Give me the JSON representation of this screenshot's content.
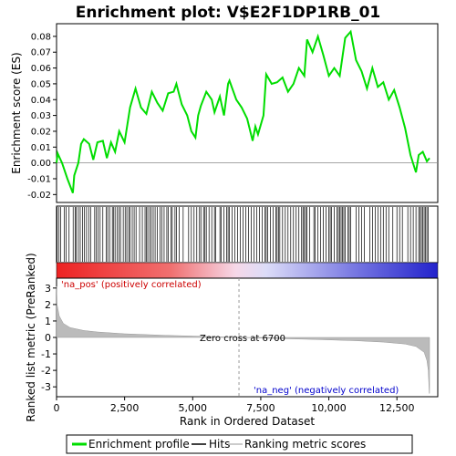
{
  "chart_data": {
    "type": "line",
    "title": "Enrichment plot: V$E2F1DP1RB_01",
    "ylabel_top": "Enrichment score (ES)",
    "ylabel_bottom": "Ranked list metric (PreRanked)",
    "xlabel": "Rank in Ordered Dataset",
    "x_ticks": [
      0,
      2500,
      5000,
      7500,
      10000,
      12500
    ],
    "x_tick_labels": [
      "0",
      "2,500",
      "5,000",
      "7,500",
      "10,000",
      "12,500"
    ],
    "es_y_ticks": [
      -0.02,
      -0.01,
      0.0,
      0.01,
      0.02,
      0.03,
      0.04,
      0.05,
      0.06,
      0.07,
      0.08
    ],
    "es_y_tick_labels": [
      "-0.02",
      "-0.01",
      "0.00",
      "0.01",
      "0.02",
      "0.03",
      "0.04",
      "0.05",
      "0.06",
      "0.07",
      "0.08"
    ],
    "es_ylim": [
      -0.025,
      0.088
    ],
    "xlim": [
      0,
      14000
    ],
    "metric_y_ticks": [
      3,
      2,
      1,
      0,
      -1,
      -2,
      -3
    ],
    "metric_y_tick_labels": [
      "3",
      "2",
      "1",
      "0",
      "-1",
      "-2",
      "-3"
    ],
    "metric_ylim": [
      -3.6,
      3.6
    ],
    "grid": false,
    "legend_position": "bottom",
    "legend": [
      {
        "label": "Enrichment profile",
        "color": "#00dd00"
      },
      {
        "label": "Hits",
        "color": "#000000"
      },
      {
        "label": "Ranking metric scores",
        "color": "#bbbbbb"
      }
    ],
    "annotations": {
      "pos_label": "'na_pos' (positively correlated)",
      "neg_label": "'na_neg' (negatively correlated)",
      "zero_cross_label": "Zero cross at 6700",
      "zero_cross_rank": 6700
    },
    "n_ranks": 13700,
    "enrichment_profile": [
      [
        0,
        0.0
      ],
      [
        40,
        0.006
      ],
      [
        200,
        0.0
      ],
      [
        400,
        -0.01
      ],
      [
        600,
        -0.019
      ],
      [
        650,
        -0.008
      ],
      [
        800,
        0.0
      ],
      [
        900,
        0.012
      ],
      [
        1000,
        0.015
      ],
      [
        1200,
        0.012
      ],
      [
        1350,
        0.002
      ],
      [
        1500,
        0.013
      ],
      [
        1700,
        0.014
      ],
      [
        1850,
        0.003
      ],
      [
        2000,
        0.013
      ],
      [
        2150,
        0.007
      ],
      [
        2300,
        0.02
      ],
      [
        2500,
        0.013
      ],
      [
        2700,
        0.035
      ],
      [
        2900,
        0.047
      ],
      [
        3100,
        0.035
      ],
      [
        3300,
        0.031
      ],
      [
        3500,
        0.045
      ],
      [
        3700,
        0.038
      ],
      [
        3900,
        0.033
      ],
      [
        4100,
        0.044
      ],
      [
        4300,
        0.045
      ],
      [
        4400,
        0.05
      ],
      [
        4600,
        0.037
      ],
      [
        4800,
        0.03
      ],
      [
        4950,
        0.02
      ],
      [
        5100,
        0.016
      ],
      [
        5200,
        0.03
      ],
      [
        5300,
        0.036
      ],
      [
        5500,
        0.045
      ],
      [
        5700,
        0.04
      ],
      [
        5800,
        0.032
      ],
      [
        6000,
        0.042
      ],
      [
        6150,
        0.03
      ],
      [
        6300,
        0.05
      ],
      [
        6350,
        0.052
      ],
      [
        6600,
        0.04
      ],
      [
        6800,
        0.035
      ],
      [
        7000,
        0.028
      ],
      [
        7200,
        0.014
      ],
      [
        7300,
        0.023
      ],
      [
        7400,
        0.018
      ],
      [
        7600,
        0.03
      ],
      [
        7700,
        0.056
      ],
      [
        7900,
        0.05
      ],
      [
        8100,
        0.051
      ],
      [
        8300,
        0.054
      ],
      [
        8500,
        0.045
      ],
      [
        8700,
        0.05
      ],
      [
        8900,
        0.06
      ],
      [
        9100,
        0.055
      ],
      [
        9200,
        0.078
      ],
      [
        9400,
        0.07
      ],
      [
        9600,
        0.08
      ],
      [
        9800,
        0.068
      ],
      [
        10000,
        0.055
      ],
      [
        10200,
        0.06
      ],
      [
        10400,
        0.055
      ],
      [
        10600,
        0.079
      ],
      [
        10800,
        0.083
      ],
      [
        11000,
        0.065
      ],
      [
        11200,
        0.058
      ],
      [
        11400,
        0.047
      ],
      [
        11600,
        0.06
      ],
      [
        11800,
        0.048
      ],
      [
        12000,
        0.051
      ],
      [
        12200,
        0.04
      ],
      [
        12400,
        0.046
      ],
      [
        12600,
        0.035
      ],
      [
        12800,
        0.022
      ],
      [
        13000,
        0.005
      ],
      [
        13200,
        -0.006
      ],
      [
        13300,
        0.005
      ],
      [
        13450,
        0.007
      ],
      [
        13600,
        0.001
      ],
      [
        13700,
        0.003
      ]
    ],
    "hits": [
      20,
      90,
      150,
      280,
      350,
      460,
      610,
      680,
      720,
      800,
      870,
      950,
      1020,
      1100,
      1180,
      1250,
      1400,
      1460,
      1520,
      1600,
      1700,
      1830,
      1880,
      1950,
      2050,
      2100,
      2150,
      2230,
      2300,
      2350,
      2450,
      2520,
      2580,
      2650,
      2700,
      2780,
      2850,
      2920,
      3050,
      3150,
      3250,
      3300,
      3350,
      3420,
      3480,
      3550,
      3620,
      3700,
      3800,
      3870,
      3950,
      4050,
      4100,
      4200,
      4250,
      4350,
      4400,
      4500,
      4650,
      4850,
      4950,
      5050,
      5150,
      5250,
      5300,
      5400,
      5450,
      5500,
      5600,
      5700,
      5800,
      5850,
      6000,
      6050,
      6150,
      6250,
      6300,
      6350,
      6450,
      6550,
      6650,
      6750,
      6850,
      6950,
      7050,
      7150,
      7250,
      7350,
      7450,
      7550,
      7650,
      7700,
      7750,
      7850,
      7950,
      8050,
      8100,
      8150,
      8200,
      8300,
      8400,
      8500,
      8600,
      8700,
      8800,
      8900,
      9000,
      9050,
      9100,
      9150,
      9200,
      9300,
      9450,
      9500,
      9600,
      9700,
      9800,
      9900,
      10000,
      10050,
      10100,
      10200,
      10300,
      10350,
      10400,
      10450,
      10500,
      10550,
      10600,
      10700,
      10750,
      10800,
      11000,
      11100,
      11200,
      11300,
      11500,
      11600,
      11700,
      11800,
      11900,
      12000,
      12100,
      12200,
      12350,
      12500,
      12600,
      12700,
      12900,
      13000,
      13100,
      13200,
      13300,
      13350,
      13400,
      13450,
      13500,
      13550,
      13600,
      13650
    ],
    "ranked_metric": [
      [
        0,
        3.1
      ],
      [
        20,
        2.0
      ],
      [
        100,
        1.3
      ],
      [
        250,
        0.85
      ],
      [
        500,
        0.6
      ],
      [
        1000,
        0.42
      ],
      [
        1500,
        0.33
      ],
      [
        2500,
        0.22
      ],
      [
        4000,
        0.13
      ],
      [
        5500,
        0.06
      ],
      [
        6700,
        0.0
      ],
      [
        8000,
        -0.06
      ],
      [
        9500,
        -0.12
      ],
      [
        11000,
        -0.2
      ],
      [
        12000,
        -0.28
      ],
      [
        12800,
        -0.4
      ],
      [
        13200,
        -0.55
      ],
      [
        13500,
        -0.9
      ],
      [
        13600,
        -1.4
      ],
      [
        13650,
        -2.0
      ],
      [
        13690,
        -3.4
      ],
      [
        13700,
        -3.4
      ]
    ],
    "colors": {
      "profile": "#00dd00",
      "hits": "#000000",
      "metric_fill": "#bbbbbb",
      "pos_label": "#cc0000",
      "neg_label": "#0000cc",
      "gradient_start": "#ff0000",
      "gradient_end": "#0000ff"
    }
  }
}
